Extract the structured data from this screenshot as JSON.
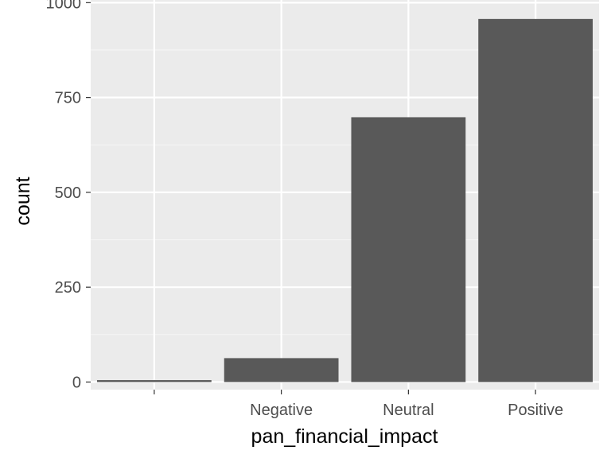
{
  "chart_data": {
    "type": "bar",
    "categories": [
      "",
      "Negative",
      "Neutral",
      "Positive"
    ],
    "values": [
      5,
      63,
      698,
      957
    ],
    "title": "",
    "xlabel": "pan_financial_impact",
    "ylabel": "count",
    "ylim": [
      -20,
      1007
    ],
    "yticks": [
      0,
      250,
      500,
      750,
      1000
    ],
    "grid": true,
    "legend": "none",
    "colors": {
      "bar": "#595959",
      "panel_background": "#ebebeb",
      "grid_major": "#ffffff",
      "grid_minor": "#f5f5f5",
      "tick_text": "#4d4d4d",
      "axis_title": "#000000"
    }
  }
}
